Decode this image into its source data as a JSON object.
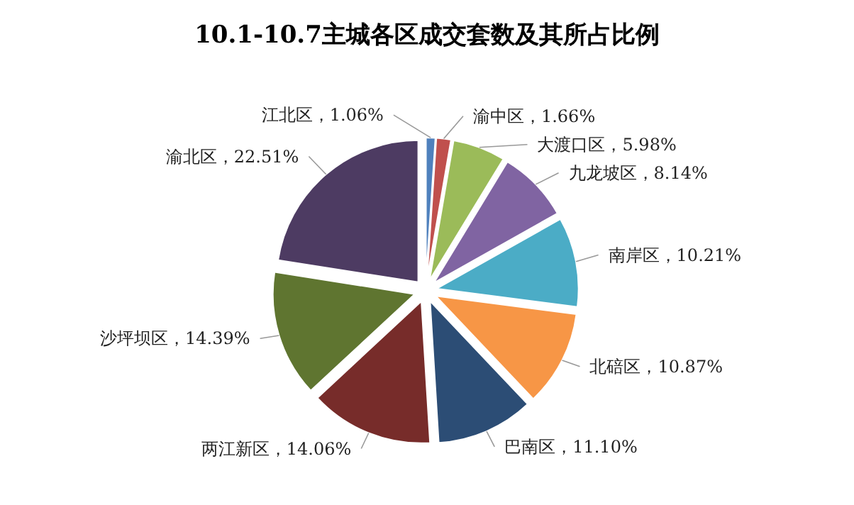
{
  "chart_data": {
    "type": "pie",
    "title": "10.1-10.7主城各区成交套数及其所占比例",
    "categories": [
      "江北区",
      "渝中区",
      "大渡口区",
      "九龙坡区",
      "南岸区",
      "北碚区",
      "巴南区",
      "两江新区",
      "沙坪坝区",
      "渝北区"
    ],
    "values": [
      1.06,
      1.66,
      5.98,
      8.14,
      10.21,
      10.87,
      11.1,
      14.06,
      14.39,
      22.51
    ],
    "value_labels": [
      "1.06%",
      "1.66%",
      "5.98%",
      "8.14%",
      "10.21%",
      "10.87%",
      "11.10%",
      "14.06%",
      "14.39%",
      "22.51%"
    ],
    "colors": [
      "#4f81bd",
      "#c0504d",
      "#9bbb59",
      "#8064a2",
      "#4bacc6",
      "#f79646",
      "#2c4d75",
      "#772c2a",
      "#5f7530",
      "#4d3b62"
    ]
  }
}
